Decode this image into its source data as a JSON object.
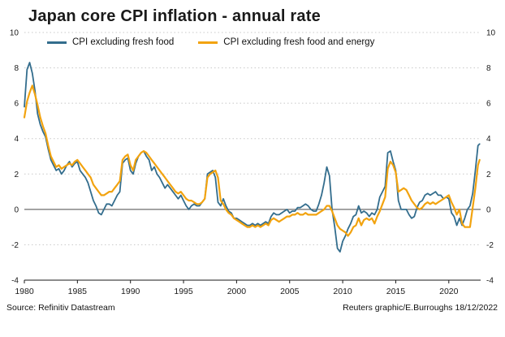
{
  "page": {
    "title": "Japan core CPI inflation - annual rate",
    "source": "Source: Refinitiv Datastream",
    "credit": "Reuters graphic/E.Burroughs 18/12/2022"
  },
  "chart_data": {
    "type": "line",
    "title": "Japan core CPI inflation - annual rate",
    "xlabel": "",
    "ylabel": "",
    "xlim": [
      1980,
      2023
    ],
    "ylim": [
      -4,
      10
    ],
    "xticks": [
      1980,
      1985,
      1990,
      1995,
      2000,
      2005,
      2010,
      2015,
      2020
    ],
    "yticks": [
      -4,
      -2,
      0,
      2,
      4,
      6,
      8,
      10
    ],
    "y_axis_labels": "both-sides",
    "grid": "horizontal-dotted",
    "zero_line": "solid",
    "legend_position": "top-left-inside",
    "colors": {
      "blue": "#336d8d",
      "orange": "#f2a30f",
      "axis": "#1a1a1a",
      "grid": "#c8c8c8"
    },
    "series": [
      {
        "name": "CPI excluding fresh food",
        "color": "#336d8d"
      },
      {
        "name": "CPI excluding fresh food and energy",
        "color": "#f2a30f"
      }
    ],
    "points_format": [
      "year",
      "cpi_excluding_fresh_food",
      "cpi_excluding_fresh_food_and_energy"
    ],
    "points": [
      [
        1980.0,
        5.8,
        5.2
      ],
      [
        1980.25,
        7.9,
        6.1
      ],
      [
        1980.5,
        8.3,
        6.6
      ],
      [
        1980.75,
        7.7,
        7.0
      ],
      [
        1981.0,
        6.7,
        6.5
      ],
      [
        1981.25,
        5.4,
        5.9
      ],
      [
        1981.5,
        4.8,
        5.2
      ],
      [
        1981.75,
        4.4,
        4.7
      ],
      [
        1982.0,
        4.1,
        4.3
      ],
      [
        1982.25,
        3.4,
        3.6
      ],
      [
        1982.5,
        2.8,
        3.0
      ],
      [
        1982.75,
        2.5,
        2.7
      ],
      [
        1983.0,
        2.2,
        2.4
      ],
      [
        1983.25,
        2.3,
        2.5
      ],
      [
        1983.5,
        2.0,
        2.3
      ],
      [
        1983.75,
        2.2,
        2.4
      ],
      [
        1984.0,
        2.5,
        2.5
      ],
      [
        1984.25,
        2.7,
        2.6
      ],
      [
        1984.5,
        2.4,
        2.5
      ],
      [
        1984.75,
        2.6,
        2.7
      ],
      [
        1985.0,
        2.7,
        2.8
      ],
      [
        1985.25,
        2.2,
        2.6
      ],
      [
        1985.5,
        2.0,
        2.4
      ],
      [
        1985.75,
        1.8,
        2.2
      ],
      [
        1986.0,
        1.5,
        2.0
      ],
      [
        1986.25,
        1.0,
        1.8
      ],
      [
        1986.5,
        0.5,
        1.4
      ],
      [
        1986.75,
        0.2,
        1.2
      ],
      [
        1987.0,
        -0.2,
        1.0
      ],
      [
        1987.25,
        -0.3,
        0.8
      ],
      [
        1987.5,
        0.0,
        0.8
      ],
      [
        1987.75,
        0.3,
        0.9
      ],
      [
        1988.0,
        0.3,
        1.0
      ],
      [
        1988.25,
        0.2,
        1.0
      ],
      [
        1988.5,
        0.5,
        1.2
      ],
      [
        1988.75,
        0.8,
        1.4
      ],
      [
        1989.0,
        1.0,
        1.6
      ],
      [
        1989.25,
        2.6,
        2.8
      ],
      [
        1989.5,
        2.8,
        3.0
      ],
      [
        1989.75,
        2.9,
        3.1
      ],
      [
        1990.0,
        2.2,
        2.5
      ],
      [
        1990.25,
        2.0,
        2.2
      ],
      [
        1990.5,
        2.6,
        2.8
      ],
      [
        1990.75,
        3.0,
        3.0
      ],
      [
        1991.0,
        3.2,
        3.2
      ],
      [
        1991.25,
        3.3,
        3.3
      ],
      [
        1991.5,
        3.0,
        3.2
      ],
      [
        1991.75,
        2.8,
        3.0
      ],
      [
        1992.0,
        2.2,
        2.8
      ],
      [
        1992.25,
        2.4,
        2.6
      ],
      [
        1992.5,
        2.0,
        2.4
      ],
      [
        1992.75,
        1.8,
        2.2
      ],
      [
        1993.0,
        1.5,
        2.0
      ],
      [
        1993.25,
        1.2,
        1.8
      ],
      [
        1993.5,
        1.4,
        1.6
      ],
      [
        1993.75,
        1.2,
        1.4
      ],
      [
        1994.0,
        1.0,
        1.2
      ],
      [
        1994.25,
        0.8,
        1.0
      ],
      [
        1994.5,
        0.6,
        0.9
      ],
      [
        1994.75,
        0.8,
        1.0
      ],
      [
        1995.0,
        0.5,
        0.8
      ],
      [
        1995.25,
        0.2,
        0.6
      ],
      [
        1995.5,
        0.0,
        0.5
      ],
      [
        1995.75,
        0.2,
        0.5
      ],
      [
        1996.0,
        0.3,
        0.4
      ],
      [
        1996.25,
        0.2,
        0.3
      ],
      [
        1996.5,
        0.2,
        0.3
      ],
      [
        1996.75,
        0.4,
        0.4
      ],
      [
        1997.0,
        0.6,
        0.6
      ],
      [
        1997.25,
        2.0,
        1.8
      ],
      [
        1997.5,
        2.1,
        2.0
      ],
      [
        1997.75,
        2.2,
        2.1
      ],
      [
        1998.0,
        1.8,
        2.2
      ],
      [
        1998.25,
        0.4,
        1.8
      ],
      [
        1998.5,
        0.2,
        0.5
      ],
      [
        1998.75,
        0.6,
        0.3
      ],
      [
        1999.0,
        0.2,
        0.0
      ],
      [
        1999.25,
        -0.1,
        -0.2
      ],
      [
        1999.5,
        -0.2,
        -0.3
      ],
      [
        1999.75,
        -0.5,
        -0.5
      ],
      [
        2000.0,
        -0.5,
        -0.6
      ],
      [
        2000.25,
        -0.6,
        -0.7
      ],
      [
        2000.5,
        -0.7,
        -0.8
      ],
      [
        2000.75,
        -0.8,
        -0.9
      ],
      [
        2001.0,
        -0.9,
        -1.0
      ],
      [
        2001.25,
        -0.9,
        -1.0
      ],
      [
        2001.5,
        -0.8,
        -0.9
      ],
      [
        2001.75,
        -0.9,
        -1.0
      ],
      [
        2002.0,
        -0.8,
        -0.9
      ],
      [
        2002.25,
        -0.9,
        -1.0
      ],
      [
        2002.5,
        -0.8,
        -0.9
      ],
      [
        2002.75,
        -0.7,
        -0.8
      ],
      [
        2003.0,
        -0.8,
        -0.9
      ],
      [
        2003.25,
        -0.4,
        -0.6
      ],
      [
        2003.5,
        -0.2,
        -0.5
      ],
      [
        2003.75,
        -0.3,
        -0.6
      ],
      [
        2004.0,
        -0.3,
        -0.7
      ],
      [
        2004.25,
        -0.2,
        -0.6
      ],
      [
        2004.5,
        -0.1,
        -0.5
      ],
      [
        2004.75,
        0.0,
        -0.4
      ],
      [
        2005.0,
        -0.2,
        -0.4
      ],
      [
        2005.25,
        -0.1,
        -0.3
      ],
      [
        2005.5,
        -0.1,
        -0.3
      ],
      [
        2005.75,
        0.1,
        -0.2
      ],
      [
        2006.0,
        0.1,
        -0.3
      ],
      [
        2006.25,
        0.2,
        -0.3
      ],
      [
        2006.5,
        0.3,
        -0.2
      ],
      [
        2006.75,
        0.2,
        -0.3
      ],
      [
        2007.0,
        0.0,
        -0.3
      ],
      [
        2007.25,
        -0.1,
        -0.3
      ],
      [
        2007.5,
        -0.1,
        -0.3
      ],
      [
        2007.75,
        0.3,
        -0.2
      ],
      [
        2008.0,
        0.8,
        -0.1
      ],
      [
        2008.25,
        1.5,
        0.0
      ],
      [
        2008.5,
        2.4,
        0.2
      ],
      [
        2008.75,
        1.9,
        0.2
      ],
      [
        2009.0,
        0.0,
        -0.1
      ],
      [
        2009.25,
        -1.0,
        -0.5
      ],
      [
        2009.5,
        -2.2,
        -0.9
      ],
      [
        2009.75,
        -2.4,
        -1.1
      ],
      [
        2010.0,
        -1.8,
        -1.2
      ],
      [
        2010.25,
        -1.5,
        -1.3
      ],
      [
        2010.5,
        -1.1,
        -1.5
      ],
      [
        2010.75,
        -0.8,
        -1.3
      ],
      [
        2011.0,
        -0.4,
        -1.0
      ],
      [
        2011.25,
        -0.3,
        -0.9
      ],
      [
        2011.5,
        0.2,
        -0.5
      ],
      [
        2011.75,
        -0.2,
        -0.9
      ],
      [
        2012.0,
        -0.1,
        -0.6
      ],
      [
        2012.25,
        -0.2,
        -0.5
      ],
      [
        2012.5,
        -0.4,
        -0.6
      ],
      [
        2012.75,
        -0.2,
        -0.5
      ],
      [
        2013.0,
        -0.3,
        -0.8
      ],
      [
        2013.25,
        0.0,
        -0.4
      ],
      [
        2013.5,
        0.7,
        -0.1
      ],
      [
        2013.75,
        1.0,
        0.3
      ],
      [
        2014.0,
        1.3,
        0.7
      ],
      [
        2014.25,
        3.2,
        2.3
      ],
      [
        2014.5,
        3.3,
        2.7
      ],
      [
        2014.75,
        2.7,
        2.5
      ],
      [
        2015.0,
        2.2,
        2.1
      ],
      [
        2015.25,
        0.5,
        1.0
      ],
      [
        2015.5,
        0.0,
        1.1
      ],
      [
        2015.75,
        0.0,
        1.2
      ],
      [
        2016.0,
        0.0,
        1.1
      ],
      [
        2016.25,
        -0.3,
        0.8
      ],
      [
        2016.5,
        -0.5,
        0.5
      ],
      [
        2016.75,
        -0.4,
        0.3
      ],
      [
        2017.0,
        0.1,
        0.1
      ],
      [
        2017.25,
        0.4,
        0.0
      ],
      [
        2017.5,
        0.5,
        0.1
      ],
      [
        2017.75,
        0.8,
        0.3
      ],
      [
        2018.0,
        0.9,
        0.4
      ],
      [
        2018.25,
        0.8,
        0.3
      ],
      [
        2018.5,
        0.9,
        0.4
      ],
      [
        2018.75,
        1.0,
        0.3
      ],
      [
        2019.0,
        0.8,
        0.4
      ],
      [
        2019.25,
        0.8,
        0.5
      ],
      [
        2019.5,
        0.6,
        0.6
      ],
      [
        2019.75,
        0.7,
        0.7
      ],
      [
        2020.0,
        0.6,
        0.8
      ],
      [
        2020.25,
        -0.2,
        0.4
      ],
      [
        2020.5,
        -0.4,
        0.1
      ],
      [
        2020.75,
        -0.9,
        -0.3
      ],
      [
        2021.0,
        -0.5,
        0.0
      ],
      [
        2021.25,
        -0.9,
        -0.8
      ],
      [
        2021.5,
        -0.5,
        -1.0
      ],
      [
        2021.75,
        0.0,
        -1.0
      ],
      [
        2022.0,
        0.2,
        -1.0
      ],
      [
        2022.25,
        0.9,
        0.1
      ],
      [
        2022.5,
        2.2,
        1.2
      ],
      [
        2022.75,
        3.6,
        2.5
      ],
      [
        2022.9,
        3.7,
        2.8
      ]
    ]
  }
}
